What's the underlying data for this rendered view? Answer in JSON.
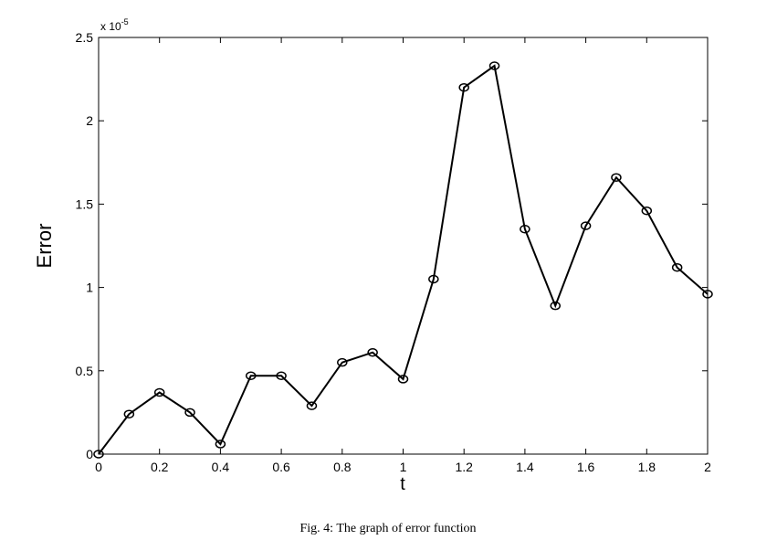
{
  "chart_data": {
    "type": "line",
    "x_label": "t",
    "y_label": "Error",
    "y_multiplier": {
      "base": "x 10",
      "exponent": "-5"
    },
    "caption": "Fig. 4: The graph of error function",
    "x": [
      0,
      0.1,
      0.2,
      0.3,
      0.4,
      0.5,
      0.6,
      0.7,
      0.8,
      0.9,
      1.0,
      1.1,
      1.2,
      1.3,
      1.4,
      1.5,
      1.6,
      1.7,
      1.8,
      1.9,
      2.0
    ],
    "series": [
      {
        "color": "#000000",
        "values": [
          0,
          0.24,
          0.37,
          0.25,
          0.06,
          0.47,
          0.47,
          0.29,
          0.55,
          0.61,
          0.45,
          1.05,
          2.2,
          2.33,
          1.35,
          0.89,
          1.37,
          1.66,
          1.46,
          1.12,
          0.96
        ]
      }
    ],
    "xlim": [
      0,
      2
    ],
    "ylim": [
      0,
      2.5
    ],
    "xticks": [
      0,
      0.2,
      0.4,
      0.6,
      0.8,
      1,
      1.2,
      1.4,
      1.6,
      1.8,
      2
    ],
    "yticks": [
      0,
      0.5,
      1,
      1.5,
      2,
      2.5
    ],
    "grid": false
  }
}
